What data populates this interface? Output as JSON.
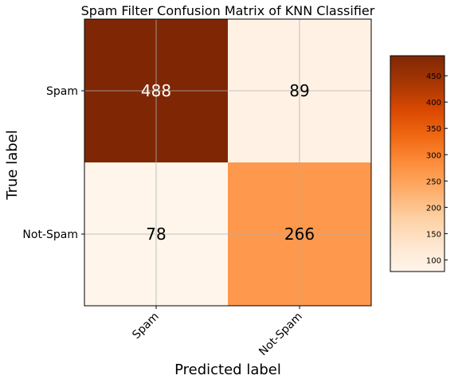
{
  "chart_data": {
    "type": "heatmap",
    "title": "Spam Filter Confusion Matrix of KNN Classifier",
    "xlabel": "Predicted label",
    "ylabel": "True label",
    "x_categories": [
      "Spam",
      "Not-Spam"
    ],
    "y_categories": [
      "Spam",
      "Not-Spam"
    ],
    "values": [
      [
        488,
        89
      ],
      [
        78,
        266
      ]
    ],
    "colormap": "Oranges",
    "grid": true,
    "colorbar": {
      "min": 78,
      "max": 488,
      "ticks": [
        100,
        150,
        200,
        250,
        300,
        350,
        400,
        450
      ],
      "placement": "right"
    },
    "colors": {
      "low": "#fff5eb",
      "high": "#7f2704",
      "text_dark": "#000000",
      "text_light": "#ffffff",
      "grid": "#b0b0b0"
    }
  }
}
